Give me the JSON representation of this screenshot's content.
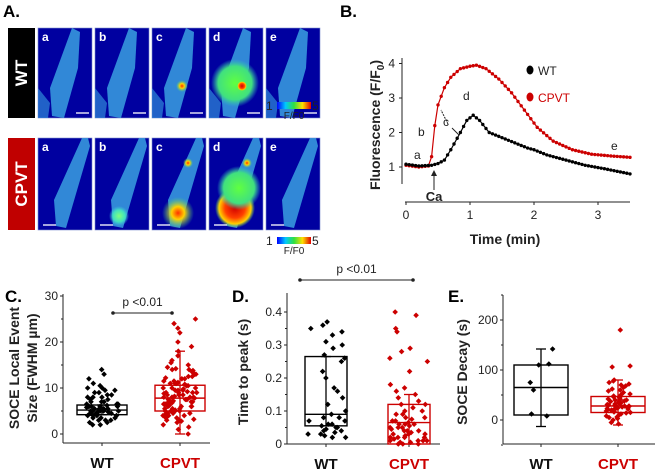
{
  "panels": {
    "A": "A.",
    "B": "B.",
    "C": "C.",
    "D": "D.",
    "E": "E."
  },
  "panel_a": {
    "rows": [
      {
        "label": "WT",
        "color": "#000000"
      },
      {
        "label": "CPVT",
        "color": "#c00000"
      }
    ],
    "frames": [
      "a",
      "b",
      "c",
      "d",
      "e"
    ],
    "colorbar": {
      "min": "1",
      "max": "5",
      "label": "F/F0"
    }
  },
  "colors": {
    "wt": "#000000",
    "cpvt": "#cc0000",
    "image_bg": "#0000a0"
  },
  "chart_data": [
    {
      "type": "line",
      "panel": "B",
      "xlabel": "Time (min)",
      "ylabel_main": "Fluorescence (F/F",
      "ylabel_sub": "0",
      "ylabel_end": ")",
      "xlim": [
        0,
        3.5
      ],
      "ylim": [
        0.5,
        4.2
      ],
      "xticks": [
        "0",
        "1",
        "2",
        "3"
      ],
      "yticks": [
        "1",
        "2",
        "3",
        "4"
      ],
      "legend": {
        "position": "top-right",
        "entries": [
          "WT",
          "CPVT"
        ]
      },
      "annotations": {
        "a": "a",
        "b": "b",
        "c": "c",
        "d": "d",
        "e": "e",
        "stim": "Ca"
      },
      "series": [
        {
          "name": "WT",
          "color": "#000000",
          "x": [
            0,
            0.2,
            0.4,
            0.5,
            0.6,
            0.7,
            0.85,
            0.95,
            1.05,
            1.15,
            1.3,
            1.5,
            1.7,
            1.9,
            2.0,
            2.2,
            2.5,
            2.8,
            3.1,
            3.5
          ],
          "y": [
            1.08,
            1.03,
            1.05,
            1.1,
            1.2,
            1.5,
            2.0,
            2.35,
            2.5,
            2.35,
            2.0,
            1.85,
            1.7,
            1.55,
            1.5,
            1.35,
            1.2,
            1.05,
            0.95,
            0.8
          ]
        },
        {
          "name": "CPVT",
          "color": "#cc0000",
          "x": [
            0,
            0.2,
            0.35,
            0.4,
            0.45,
            0.5,
            0.6,
            0.7,
            0.85,
            1.0,
            1.1,
            1.25,
            1.45,
            1.65,
            1.85,
            2.05,
            2.3,
            2.6,
            2.9,
            3.2,
            3.5
          ],
          "y": [
            1.05,
            1.0,
            1.03,
            1.3,
            2.2,
            2.8,
            3.3,
            3.6,
            3.85,
            3.92,
            3.95,
            3.85,
            3.55,
            3.15,
            2.65,
            2.15,
            1.75,
            1.5,
            1.37,
            1.32,
            1.28
          ]
        }
      ]
    },
    {
      "type": "box",
      "panel": "C",
      "ylabel_line1": "SOCE Local Event",
      "ylabel_line2": "Size (FWHM µm)",
      "ylim": [
        0,
        30
      ],
      "yticks": [
        "0",
        "10",
        "20",
        "30"
      ],
      "significance": "p <0.01",
      "groups": [
        {
          "name": "WT",
          "color": "#000000",
          "q1": 4.2,
          "median": 5.2,
          "q3": 6.3,
          "whisker_low": 4.2,
          "whisker_high": 6.3,
          "points": [
            14,
            13,
            12,
            11,
            10.5,
            10,
            10,
            9.5,
            9.5,
            9,
            9,
            8.5,
            8.5,
            8,
            8,
            8,
            7.5,
            7.5,
            7,
            7,
            7,
            6.5,
            6.5,
            6.5,
            6,
            6,
            6,
            6,
            5.5,
            5.5,
            5.5,
            5.5,
            5,
            5,
            5,
            5,
            5,
            4.5,
            4.5,
            4.5,
            4.5,
            4,
            4,
            4,
            4,
            3.5,
            3.5,
            3.5,
            3,
            3,
            3,
            2.5,
            2.5,
            2,
            2,
            6,
            5.8,
            5.2,
            4.8,
            6.2
          ]
        },
        {
          "name": "CPVT",
          "color": "#cc0000",
          "q1": 5.0,
          "median": 7.8,
          "q3": 10.6,
          "whisker_low": 0,
          "whisker_high": 18,
          "points": [
            25,
            24,
            23,
            22,
            20,
            19,
            18,
            17,
            16,
            15.5,
            15,
            14.5,
            14,
            14,
            13.5,
            13,
            13,
            12.5,
            12.5,
            12,
            12,
            11.5,
            11.5,
            11,
            11,
            11,
            10.5,
            10.5,
            10,
            10,
            10,
            9.5,
            9.5,
            9.5,
            9,
            9,
            9,
            9,
            8.5,
            8.5,
            8.5,
            8,
            8,
            8,
            8,
            7.5,
            7.5,
            7.5,
            7.5,
            7,
            7,
            7,
            7,
            6.5,
            6.5,
            6.5,
            6,
            6,
            6,
            6,
            5.5,
            5.5,
            5.5,
            5,
            5,
            5,
            5,
            4.5,
            4.5,
            4.5,
            4,
            4,
            4,
            3.5,
            3.5,
            3,
            3,
            2.5,
            2,
            1.5,
            1,
            0,
            8.2,
            7.8,
            9.2,
            10.8,
            6.8,
            5.2,
            12.2,
            13.8,
            3.8,
            4.2,
            6.2,
            7.2,
            8.8,
            9.8,
            11.2,
            14.2,
            2.8,
            3.2
          ]
        }
      ]
    },
    {
      "type": "box",
      "panel": "D",
      "ylabel": "Time to peak (s)",
      "ylim": [
        0,
        0.43
      ],
      "yticks": [
        "0",
        "0.1",
        "0.2",
        "0.3",
        "0.4"
      ],
      "significance": "p <0.01",
      "groups": [
        {
          "name": "WT",
          "color": "#000000",
          "q1": 0.055,
          "median": 0.09,
          "q3": 0.265,
          "whisker_low": 0.055,
          "whisker_high": 0.265,
          "points": [
            0.37,
            0.36,
            0.35,
            0.34,
            0.33,
            0.31,
            0.3,
            0.29,
            0.27,
            0.26,
            0.25,
            0.22,
            0.2,
            0.17,
            0.16,
            0.14,
            0.12,
            0.1,
            0.09,
            0.08,
            0.08,
            0.07,
            0.07,
            0.06,
            0.06,
            0.055,
            0.05,
            0.05,
            0.045,
            0.04,
            0.04,
            0.035,
            0.03,
            0.03,
            0.025,
            0.02,
            0.02
          ]
        },
        {
          "name": "CPVT",
          "color": "#cc0000",
          "q1": 0.0,
          "median": 0.065,
          "q3": 0.12,
          "whisker_low": 0.0,
          "whisker_high": 0.15,
          "points": [
            0.4,
            0.39,
            0.35,
            0.34,
            0.29,
            0.28,
            0.26,
            0.25,
            0.22,
            0.18,
            0.17,
            0.16,
            0.15,
            0.14,
            0.13,
            0.12,
            0.12,
            0.11,
            0.1,
            0.1,
            0.09,
            0.09,
            0.08,
            0.08,
            0.075,
            0.07,
            0.07,
            0.065,
            0.06,
            0.06,
            0.055,
            0.05,
            0.05,
            0.045,
            0.04,
            0.04,
            0.035,
            0.03,
            0.03,
            0.025,
            0.02,
            0.02,
            0.02,
            0.015,
            0.01,
            0.01,
            0.01,
            0.005,
            0.005,
            0.0,
            0.0,
            0.0,
            0.03,
            0.05,
            0.06,
            0.02,
            0.01,
            0.04
          ]
        }
      ]
    },
    {
      "type": "box",
      "panel": "E",
      "ylabel": "SOCE Decay (s)",
      "ylim": [
        -50,
        250
      ],
      "yticks": [
        "0",
        "100",
        "200"
      ],
      "groups": [
        {
          "name": "WT",
          "color": "#000000",
          "q1": 10,
          "median": 65,
          "q3": 110,
          "whisker_low": -13,
          "whisker_high": 142,
          "points": [
            142,
            112,
            110,
            75,
            60,
            12,
            8
          ]
        },
        {
          "name": "CPVT",
          "color": "#cc0000",
          "q1": 15,
          "median": 28,
          "q3": 47,
          "whisker_low": -10,
          "whisker_high": 80,
          "points": [
            180,
            108,
            106,
            80,
            78,
            75,
            72,
            70,
            68,
            65,
            62,
            60,
            58,
            55,
            52,
            50,
            48,
            46,
            45,
            44,
            42,
            40,
            40,
            38,
            36,
            35,
            34,
            32,
            31,
            30,
            29,
            28,
            28,
            27,
            26,
            25,
            24,
            23,
            22,
            21,
            20,
            19,
            18,
            17,
            16,
            15,
            14,
            12,
            10,
            8,
            6,
            5,
            3,
            0,
            -5,
            -8,
            33,
            37,
            41,
            26,
            24,
            20
          ]
        }
      ]
    }
  ]
}
